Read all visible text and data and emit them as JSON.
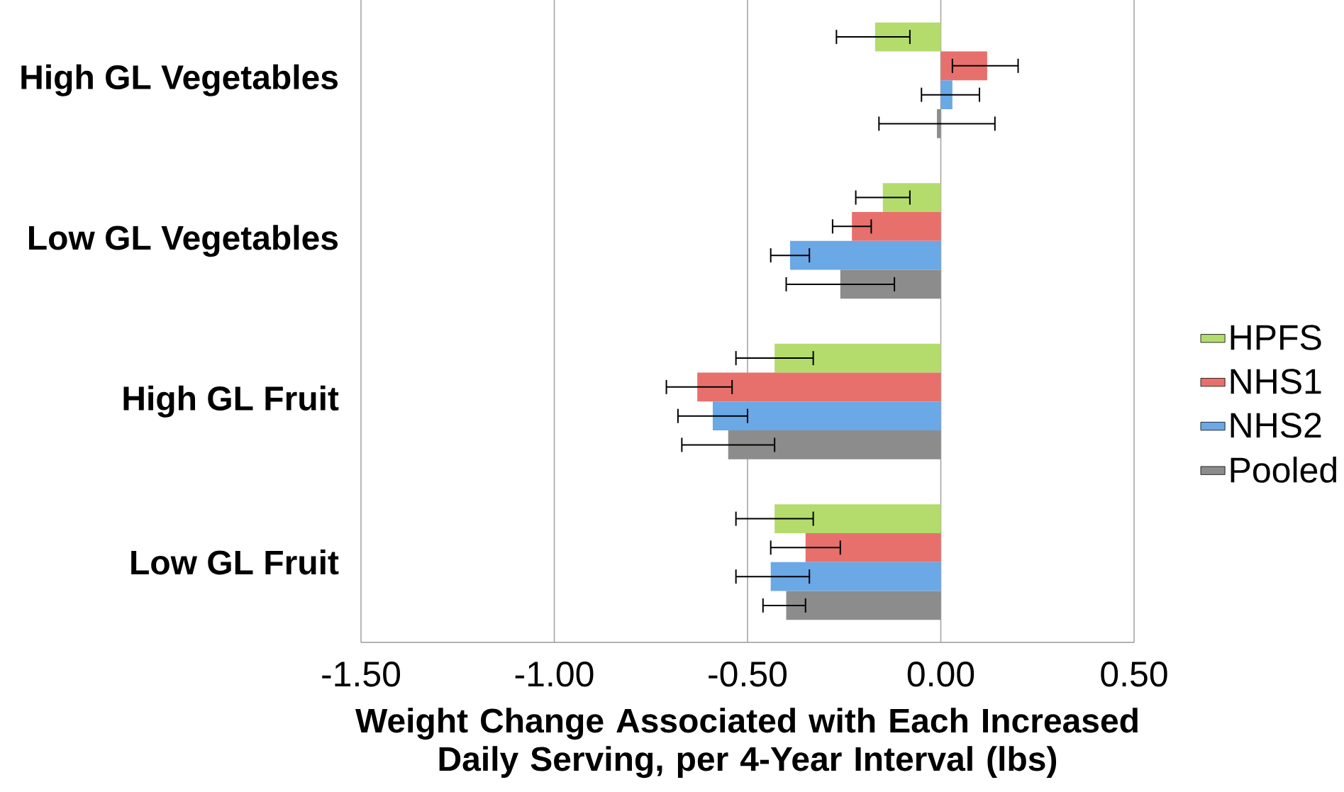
{
  "chart_data": {
    "type": "bar",
    "orientation": "horizontal",
    "categories": [
      "High GL Vegetables",
      "Low GL Vegetables",
      "High GL Fruit",
      "Low GL Fruit"
    ],
    "xlabel": "Weight Change Associated with Each Increased Daily Serving, per 4-Year Interval (lbs)",
    "xlim": [
      -1.5,
      0.5
    ],
    "xticks": [
      {
        "value": -1.5,
        "label": "-1.50"
      },
      {
        "value": -1.0,
        "label": "-1.00"
      },
      {
        "value": -0.5,
        "label": "-0.50"
      },
      {
        "value": 0,
        "label": "0.00"
      },
      {
        "value": 0.5,
        "label": "0.50"
      }
    ],
    "grid": "x",
    "legend": "right",
    "series": [
      {
        "name": "HPFS",
        "color": "#b3dc6c",
        "values": [
          -0.17,
          -0.15,
          -0.43,
          -0.43
        ],
        "errors": [
          [
            -0.27,
            -0.08
          ],
          [
            -0.22,
            -0.08
          ],
          [
            -0.53,
            -0.33
          ],
          [
            -0.53,
            -0.33
          ]
        ]
      },
      {
        "name": "NHS1",
        "color": "#e8706c",
        "values": [
          0.12,
          -0.23,
          -0.63,
          -0.35
        ],
        "errors": [
          [
            0.03,
            0.2
          ],
          [
            -0.28,
            -0.18
          ],
          [
            -0.71,
            -0.54
          ],
          [
            -0.44,
            -0.26
          ]
        ]
      },
      {
        "name": "NHS2",
        "color": "#6aa8e6",
        "values": [
          0.03,
          -0.39,
          -0.59,
          -0.44
        ],
        "errors": [
          [
            -0.05,
            0.1
          ],
          [
            -0.44,
            -0.34
          ],
          [
            -0.68,
            -0.5
          ],
          [
            -0.53,
            -0.34
          ]
        ]
      },
      {
        "name": "Pooled",
        "color": "#8c8c8c",
        "values": [
          -0.01,
          -0.26,
          -0.55,
          -0.4
        ],
        "errors": [
          [
            -0.16,
            0.14
          ],
          [
            -0.4,
            -0.12
          ],
          [
            -0.67,
            -0.43
          ],
          [
            -0.46,
            -0.35
          ]
        ]
      }
    ]
  }
}
